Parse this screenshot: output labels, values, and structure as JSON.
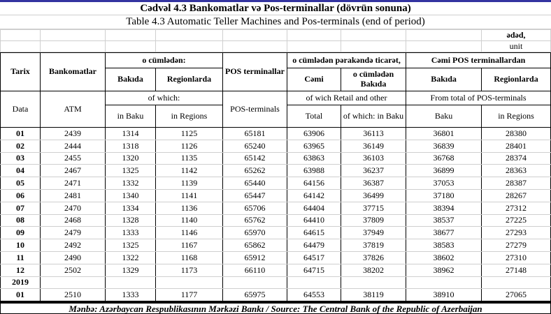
{
  "colors": {
    "accent_line": "#3333a0",
    "grid_line": "#cfcfcf",
    "table_border": "#000000"
  },
  "page": {
    "title_az": "Cədvəl 4.3 Bankomatlar və Pos-terminallar (dövrün sonuna)",
    "title_en": "Table 4.3 Automatic Teller Machines and Pos-terminals (end of period)",
    "unit_az": "ədəd,",
    "unit_en": "unit",
    "source": "Mənbə: Azərbaycan Respublikasının Mərkəzi Bankı / Source: The Central Bank of the Republic of Azerbaijan"
  },
  "table": {
    "header_az": {
      "tarix": "Tarix",
      "bankomatlar": "Bankomatlar",
      "o_cumleden": "o cümlədən:",
      "bakida": "Bakıda",
      "regionlarda": "Regionlarda",
      "pos_terminallar": "POS terminallar",
      "perakende": "o cümlədən pərakəndə ticarət,",
      "cemi": "Cəmi",
      "o_cumleden_bakida": "o cümlədən Bakıda",
      "cemi_pos": "Cəmi POS terminallardan",
      "bakida2": "Bakıda",
      "regionlarda2": "Regionlarda"
    },
    "header_en": {
      "data": "Data",
      "atm": "ATM",
      "of_which": "of which:",
      "in_baku": "in Baku",
      "in_regions": "in Regions",
      "pos_terminals": "POS-terminals",
      "retail": "of wich Retail and other",
      "total": "Total",
      "of_which_in_baku": "of which: in Baku",
      "from_total": "From total of POS-terminals",
      "baku": "Baku",
      "in_regions2": "in Regions"
    },
    "rows": [
      {
        "label": "01",
        "values": [
          "2439",
          "1314",
          "1125",
          "65181",
          "63906",
          "36113",
          "36801",
          "28380"
        ]
      },
      {
        "label": "02",
        "values": [
          "2444",
          "1318",
          "1126",
          "65240",
          "63965",
          "36149",
          "36839",
          "28401"
        ]
      },
      {
        "label": "03",
        "values": [
          "2455",
          "1320",
          "1135",
          "65142",
          "63863",
          "36103",
          "36768",
          "28374"
        ]
      },
      {
        "label": "04",
        "values": [
          "2467",
          "1325",
          "1142",
          "65262",
          "63988",
          "36237",
          "36899",
          "28363"
        ]
      },
      {
        "label": "05",
        "values": [
          "2471",
          "1332",
          "1139",
          "65440",
          "64156",
          "36387",
          "37053",
          "28387"
        ]
      },
      {
        "label": "06",
        "values": [
          "2481",
          "1340",
          "1141",
          "65447",
          "64142",
          "36499",
          "37180",
          "28267"
        ]
      },
      {
        "label": "07",
        "values": [
          "2470",
          "1334",
          "1136",
          "65706",
          "64404",
          "37715",
          "38394",
          "27312"
        ]
      },
      {
        "label": "08",
        "values": [
          "2468",
          "1328",
          "1140",
          "65762",
          "64410",
          "37809",
          "38537",
          "27225"
        ]
      },
      {
        "label": "09",
        "values": [
          "2479",
          "1333",
          "1146",
          "65970",
          "64615",
          "37949",
          "38677",
          "27293"
        ]
      },
      {
        "label": "10",
        "values": [
          "2492",
          "1325",
          "1167",
          "65862",
          "64479",
          "37819",
          "38583",
          "27279"
        ]
      },
      {
        "label": "11",
        "values": [
          "2490",
          "1322",
          "1168",
          "65912",
          "64517",
          "37826",
          "38602",
          "27310"
        ]
      },
      {
        "label": "12",
        "values": [
          "2502",
          "1329",
          "1173",
          "66110",
          "64715",
          "38202",
          "38962",
          "27148"
        ]
      },
      {
        "label": "2019",
        "values": [
          "",
          "",
          "",
          "",
          "",
          "",
          "",
          ""
        ]
      },
      {
        "label": "01",
        "values": [
          "2510",
          "1333",
          "1177",
          "65975",
          "64553",
          "38119",
          "38910",
          "27065"
        ]
      }
    ]
  }
}
